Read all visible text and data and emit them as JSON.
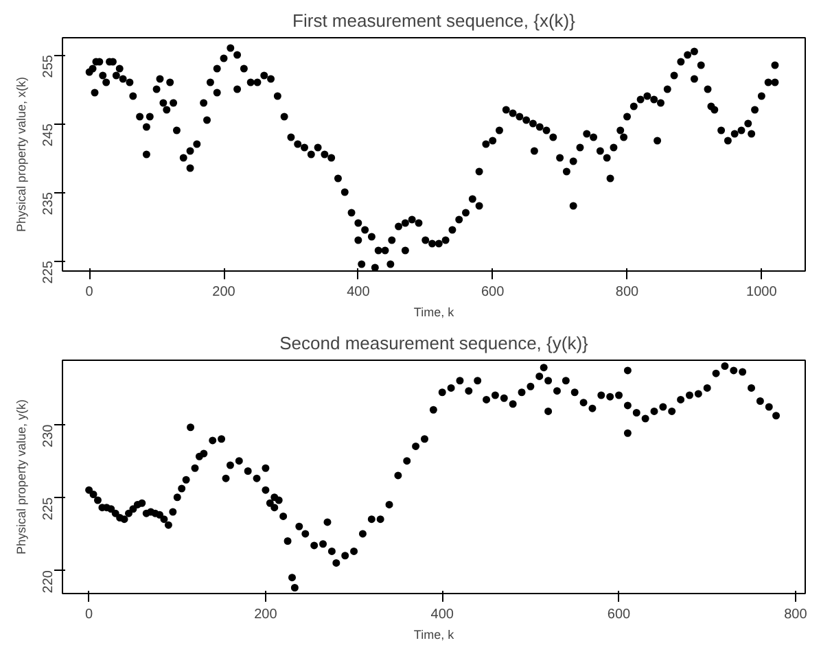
{
  "chart_data": [
    {
      "type": "scatter",
      "title": "First measurement sequence, {x(k)}",
      "xlabel": "Time, k",
      "ylabel": "Physical property value, x(k)",
      "marker": "circle",
      "grid": false,
      "xlim": [
        -40,
        1065
      ],
      "ylim": [
        223.5,
        257.5
      ],
      "xticks": [
        0,
        200,
        400,
        600,
        800,
        1000
      ],
      "yticks": [
        225,
        235,
        245,
        255
      ],
      "series": [
        {
          "color": "#000000",
          "x": [
            0,
            5,
            10,
            15,
            20,
            25,
            30,
            35,
            40,
            45,
            50,
            60,
            65,
            75,
            85,
            90,
            100,
            105,
            110,
            115,
            120,
            125,
            130,
            140,
            150,
            160,
            170,
            180,
            190,
            200,
            210,
            220,
            230,
            240,
            250,
            260,
            270,
            280,
            290,
            300,
            310,
            320,
            330,
            340,
            350,
            360,
            370,
            380,
            390,
            400,
            410,
            420,
            430,
            440,
            450,
            460,
            470,
            480,
            490,
            500,
            510,
            520,
            530,
            540,
            550,
            560,
            570,
            580,
            590,
            600,
            610,
            620,
            630,
            640,
            650,
            660,
            670,
            680,
            690,
            700,
            710,
            720,
            730,
            740,
            750,
            760,
            770,
            780,
            790,
            800,
            810,
            820,
            830,
            840,
            850,
            860,
            870,
            880,
            890,
            900,
            910,
            920,
            930,
            940,
            950,
            960,
            970,
            980,
            990,
            1000,
            1010,
            1020,
            8,
            85,
            150,
            175,
            190,
            220,
            400,
            405,
            425,
            448,
            470,
            580,
            662,
            720,
            775,
            795,
            845,
            900,
            925,
            985,
            1020
          ],
          "values": [
            252.5,
            253,
            254,
            254,
            252,
            251,
            254,
            254,
            252,
            253,
            251.5,
            251,
            249,
            246,
            244.5,
            246,
            250,
            251.5,
            248,
            247,
            251,
            248,
            244,
            240,
            241,
            242,
            248,
            251,
            253,
            254.5,
            256,
            255,
            253,
            251,
            251,
            252,
            251.5,
            249,
            246,
            243,
            242,
            241.5,
            240.5,
            241.5,
            240.5,
            240,
            237,
            235,
            232,
            230.5,
            229.5,
            228.5,
            226.5,
            226.5,
            228,
            230,
            230.5,
            231,
            230.5,
            228,
            227.5,
            227.5,
            228,
            229.5,
            231,
            232,
            234,
            238,
            242,
            242.5,
            244,
            247,
            246.5,
            246,
            245.5,
            245,
            244.5,
            244,
            243,
            240,
            238,
            239.5,
            241.5,
            243.5,
            243,
            241,
            240,
            241.5,
            244,
            246,
            247.5,
            248.5,
            249,
            248.5,
            248,
            250,
            252,
            254,
            255,
            255.5,
            253.5,
            250,
            247,
            244,
            242.5,
            243.5,
            244,
            245,
            247,
            249,
            251,
            253.5,
            249.5,
            240.5,
            238.5,
            245.5,
            249.5,
            250,
            228,
            224.5,
            224,
            224.5,
            226.5,
            233,
            241,
            233,
            237,
            243,
            242.5,
            251.5,
            247.5,
            243.5,
            251
          ]
        }
      ]
    },
    {
      "type": "scatter",
      "title": "Second measurement sequence, {y(k)}",
      "xlabel": "Time, k",
      "ylabel": "Physical property value, y(k)",
      "marker": "circle",
      "grid": false,
      "xlim": [
        -30,
        811
      ],
      "ylim": [
        218.4,
        234.4
      ],
      "xticks": [
        0,
        200,
        400,
        600,
        800
      ],
      "yticks": [
        220,
        225,
        230
      ],
      "series": [
        {
          "color": "#000000",
          "x": [
            0,
            5,
            10,
            15,
            20,
            25,
            30,
            35,
            40,
            45,
            50,
            55,
            60,
            65,
            70,
            75,
            80,
            85,
            90,
            95,
            100,
            105,
            110,
            120,
            125,
            130,
            140,
            150,
            160,
            170,
            180,
            190,
            200,
            205,
            210,
            215,
            220,
            225,
            230,
            233,
            238,
            245,
            255,
            265,
            275,
            280,
            290,
            300,
            310,
            320,
            330,
            340,
            350,
            360,
            370,
            380,
            390,
            400,
            410,
            420,
            430,
            440,
            450,
            460,
            470,
            480,
            490,
            500,
            510,
            515,
            520,
            530,
            540,
            550,
            560,
            570,
            580,
            590,
            600,
            610,
            620,
            630,
            640,
            650,
            660,
            670,
            680,
            690,
            700,
            710,
            720,
            730,
            740,
            750,
            760,
            770,
            778,
            115,
            155,
            200,
            210,
            270,
            520,
            610,
            610
          ],
          "values": [
            225.5,
            225.2,
            224.8,
            224.3,
            224.3,
            224.2,
            223.9,
            223.6,
            223.5,
            223.9,
            224.2,
            224.5,
            224.6,
            223.9,
            224,
            223.9,
            223.8,
            223.5,
            223.1,
            224,
            225,
            225.6,
            226.2,
            227,
            227.8,
            228,
            228.9,
            229,
            227.2,
            227.5,
            226.8,
            226.3,
            225.5,
            224.6,
            224.3,
            224.8,
            223.7,
            222,
            219.5,
            218.8,
            223,
            222.5,
            221.7,
            221.8,
            221.3,
            220.5,
            221,
            221.3,
            222.5,
            223.5,
            223.5,
            224.5,
            226.5,
            227.5,
            228.5,
            229,
            231,
            232.2,
            232.5,
            233,
            232.3,
            233,
            231.7,
            232,
            231.8,
            231.4,
            232.2,
            232.6,
            233.3,
            233.9,
            233,
            232.3,
            233,
            232.2,
            231.5,
            231.1,
            232,
            231.9,
            232,
            231.3,
            230.8,
            230.4,
            230.9,
            231.2,
            230.9,
            231.7,
            232,
            232.1,
            232.5,
            233.5,
            234,
            233.7,
            233.6,
            232.5,
            231.6,
            231.2,
            230.6,
            229.8,
            226.3,
            227,
            225,
            223.3,
            230.9,
            233.7,
            229.4
          ]
        }
      ]
    }
  ]
}
